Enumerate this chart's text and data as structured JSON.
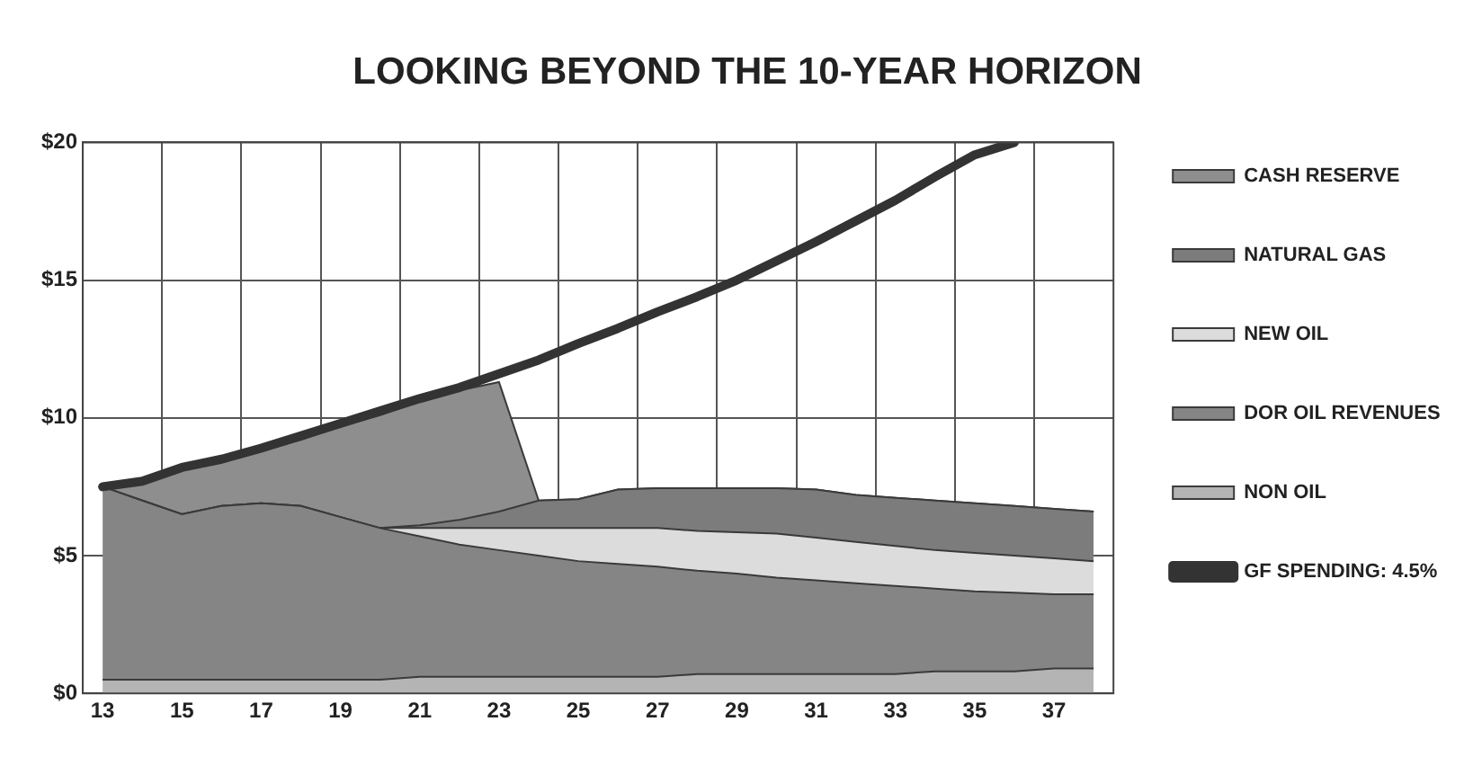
{
  "chart_data": {
    "type": "area",
    "title": "LOOKING BEYOND THE 10-YEAR HORIZON",
    "categories": [
      "13",
      null,
      "15",
      null,
      "17",
      null,
      "19",
      null,
      "21",
      null,
      "23",
      null,
      "25",
      null,
      "27",
      null,
      "29",
      null,
      "31",
      null,
      "33",
      null,
      "35",
      null,
      "37",
      null
    ],
    "stacked": true,
    "series": [
      {
        "name": "NON OIL",
        "color": "#b4b4b4",
        "values": [
          0.5,
          0.5,
          0.5,
          0.5,
          0.5,
          0.5,
          0.5,
          0.5,
          0.6,
          0.6,
          0.6,
          0.6,
          0.6,
          0.6,
          0.6,
          0.7,
          0.7,
          0.7,
          0.7,
          0.7,
          0.7,
          0.8,
          0.8,
          0.8,
          0.9,
          0.9
        ]
      },
      {
        "name": "DOR OIL REVENUES",
        "color": "#858585",
        "values": [
          7.0,
          6.5,
          6.0,
          6.3,
          6.4,
          6.3,
          5.9,
          5.5,
          5.1,
          4.8,
          4.6,
          4.4,
          4.2,
          4.1,
          4.0,
          3.75,
          3.65,
          3.5,
          3.4,
          3.3,
          3.2,
          3.0,
          2.9,
          2.85,
          2.7,
          2.7
        ]
      },
      {
        "name": "NEW OIL",
        "color": "#dcdcdc",
        "values": [
          0,
          0,
          0,
          0,
          0,
          0,
          0,
          0,
          0.3,
          0.6,
          0.8,
          1.0,
          1.2,
          1.3,
          1.4,
          1.45,
          1.5,
          1.6,
          1.55,
          1.5,
          1.45,
          1.4,
          1.4,
          1.35,
          1.3,
          1.2
        ]
      },
      {
        "name": "NATURAL GAS",
        "color": "#7c7c7c",
        "values": [
          0,
          0,
          0,
          0,
          0,
          0,
          0,
          0,
          0.1,
          0.3,
          0.6,
          1.0,
          1.05,
          1.4,
          1.45,
          1.55,
          1.6,
          1.65,
          1.75,
          1.7,
          1.75,
          1.8,
          1.8,
          1.8,
          1.8,
          1.8
        ]
      },
      {
        "name": "CASH RESERVE",
        "color": "#8e8e8e",
        "values": [
          0,
          0.6,
          1.6,
          1.6,
          1.9,
          2.4,
          3.3,
          4.1,
          4.5,
          4.7,
          4.7,
          0,
          0,
          0,
          0,
          0,
          0,
          0,
          0,
          0,
          0,
          0,
          0,
          0,
          0,
          0
        ]
      },
      {
        "name": "GF SPENDING: 4.5%",
        "type": "line",
        "color": "#333333",
        "values": [
          7.5,
          7.7,
          8.2,
          8.5,
          8.9,
          9.35,
          9.8,
          10.25,
          10.7,
          11.1,
          11.6,
          12.1,
          12.7,
          13.25,
          13.85,
          14.4,
          15.0,
          15.7,
          16.4,
          17.15,
          17.9,
          18.75,
          19.55,
          20.0,
          null,
          null
        ]
      }
    ],
    "ylim": [
      0,
      20
    ],
    "yticks": [
      {
        "value": 0,
        "label": "$0"
      },
      {
        "value": 5,
        "label": "$5"
      },
      {
        "value": 10,
        "label": "$10"
      },
      {
        "value": 15,
        "label": "$15"
      },
      {
        "value": 20,
        "label": "$20"
      }
    ],
    "grid": true,
    "legend": "right"
  }
}
